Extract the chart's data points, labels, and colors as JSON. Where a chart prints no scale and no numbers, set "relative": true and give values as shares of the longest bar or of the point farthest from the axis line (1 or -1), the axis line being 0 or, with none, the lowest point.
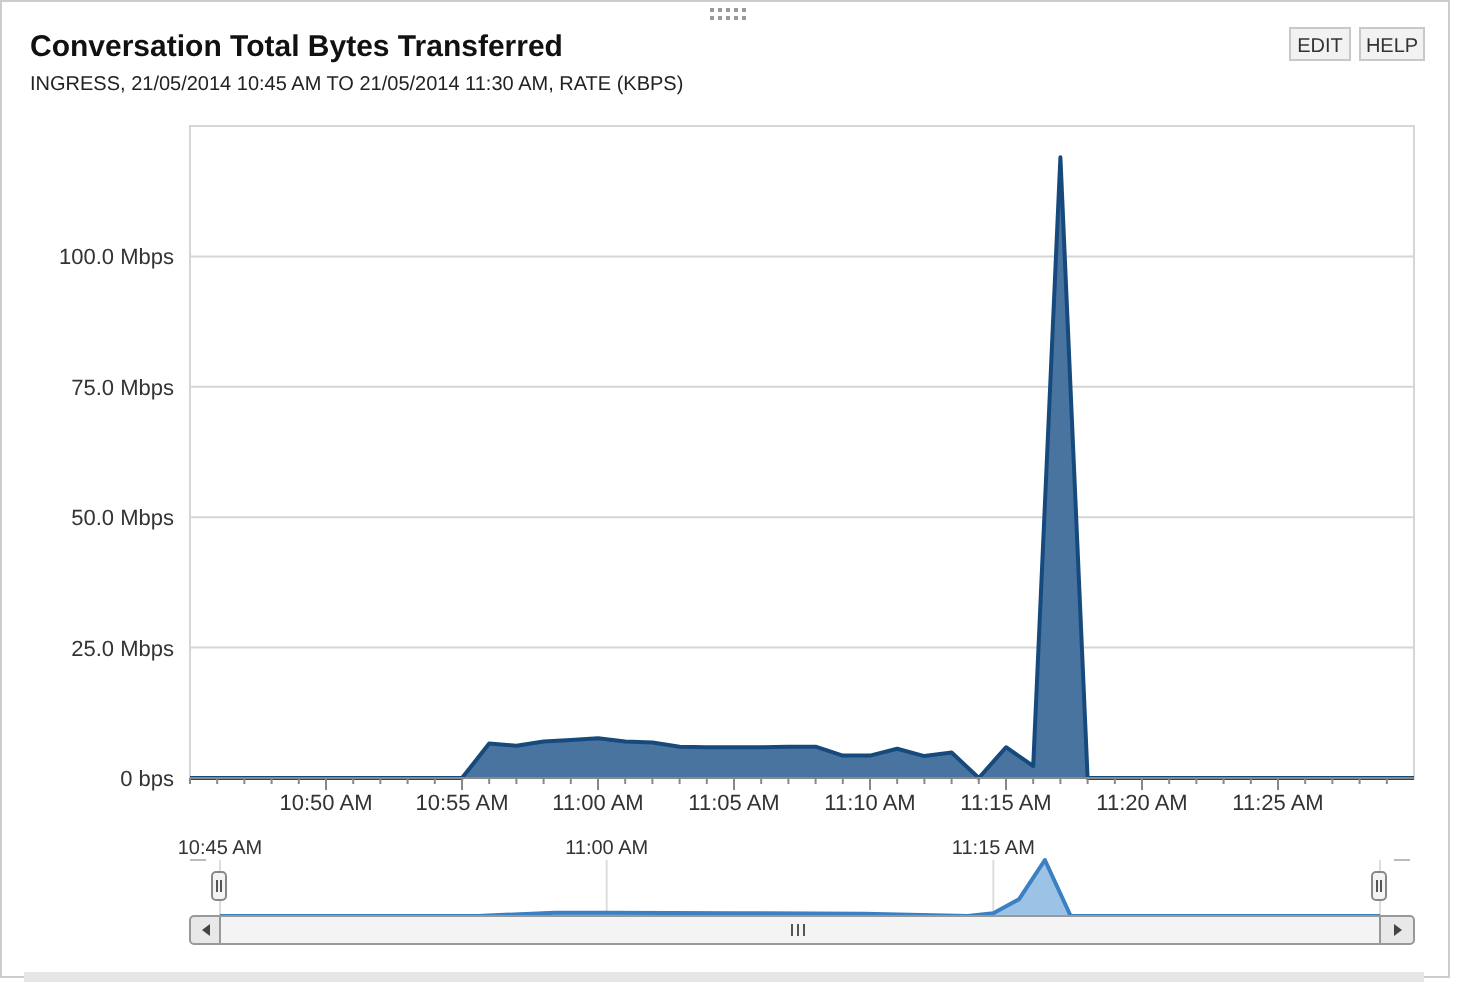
{
  "chart_data": [
    {
      "type": "area",
      "title": "Conversation Total Bytes Transferred",
      "subtitle": "INGRESS, 21/05/2014 10:45 AM TO 21/05/2014 11:30 AM, RATE (KBPS)",
      "annotations": [
        "EDIT",
        "HELP"
      ],
      "x": [
        "2014-05-21T10:45",
        "2014-05-21T10:55",
        "2014-05-21T10:56",
        "2014-05-21T10:57",
        "2014-05-21T10:58",
        "2014-05-21T10:59",
        "2014-05-21T11:00",
        "2014-05-21T11:01",
        "2014-05-21T11:02",
        "2014-05-21T11:03",
        "2014-05-21T11:04",
        "2014-05-21T11:05",
        "2014-05-21T11:06",
        "2014-05-21T11:07",
        "2014-05-21T11:08",
        "2014-05-21T11:09",
        "2014-05-21T11:10",
        "2014-05-21T11:11",
        "2014-05-21T11:12",
        "2014-05-21T11:13",
        "2014-05-21T11:14",
        "2014-05-21T11:15",
        "2014-05-21T11:16",
        "2014-05-21T11:17",
        "2014-05-21T11:18",
        "2014-05-21T11:30"
      ],
      "series": [
        {
          "color": "#4a74a0",
          "values": [
            0,
            0,
            6.6,
            6.2,
            7.0,
            7.3,
            7.6,
            7.0,
            6.8,
            6.0,
            5.9,
            5.9,
            5.9,
            6.0,
            6.0,
            4.3,
            4.3,
            5.6,
            4.2,
            4.9,
            0,
            5.9,
            2.3,
            119,
            0,
            0
          ]
        }
      ],
      "xlim": [
        "2014-05-21T10:45",
        "2014-05-21T11:30"
      ],
      "xticks": [
        {
          "value": "2014-05-21T10:50",
          "label": "10:50 AM"
        },
        {
          "value": "2014-05-21T10:55",
          "label": "10:55 AM"
        },
        {
          "value": "2014-05-21T11:00",
          "label": "11:00 AM"
        },
        {
          "value": "2014-05-21T11:05",
          "label": "11:05 AM"
        },
        {
          "value": "2014-05-21T11:10",
          "label": "11:10 AM"
        },
        {
          "value": "2014-05-21T11:15",
          "label": "11:15 AM"
        },
        {
          "value": "2014-05-21T11:20",
          "label": "11:20 AM"
        },
        {
          "value": "2014-05-21T11:25",
          "label": "11:25 AM"
        }
      ],
      "ylim": [
        0,
        125
      ],
      "yticks": [
        {
          "value": 0,
          "label": "0 bps"
        },
        {
          "value": 25,
          "label": "25.0 Mbps"
        },
        {
          "value": 50,
          "label": "50.0 Mbps"
        },
        {
          "value": 75,
          "label": "75.0 Mbps"
        },
        {
          "value": 100,
          "label": "100.0 Mbps"
        }
      ],
      "grid": "y"
    },
    {
      "type": "area",
      "relative": true,
      "tick_labels": "x",
      "x": [
        "2014-05-21T10:45",
        "2014-05-21T10:55",
        "2014-05-21T10:58",
        "2014-05-21T11:00",
        "2014-05-21T11:05",
        "2014-05-21T11:10",
        "2014-05-21T11:14",
        "2014-05-21T11:15",
        "2014-05-21T11:16",
        "2014-05-21T11:17",
        "2014-05-21T11:18",
        "2014-05-21T11:30"
      ],
      "series": [
        {
          "color": "#9cc2e6",
          "values": [
            0,
            0,
            0.06,
            0.06,
            0.05,
            0.04,
            0,
            0.05,
            0.3,
            1,
            0,
            0
          ]
        }
      ],
      "xlim": [
        "2014-05-21T10:45",
        "2014-05-21T11:30"
      ],
      "xticks": [
        {
          "value": "2014-05-21T10:45",
          "label": "10:45 AM"
        },
        {
          "value": "2014-05-21T11:00",
          "label": "11:00 AM"
        },
        {
          "value": "2014-05-21T11:15",
          "label": "11:15 AM"
        },
        {
          "value": "2014-05-21T11:30",
          "label": null
        }
      ]
    }
  ]
}
